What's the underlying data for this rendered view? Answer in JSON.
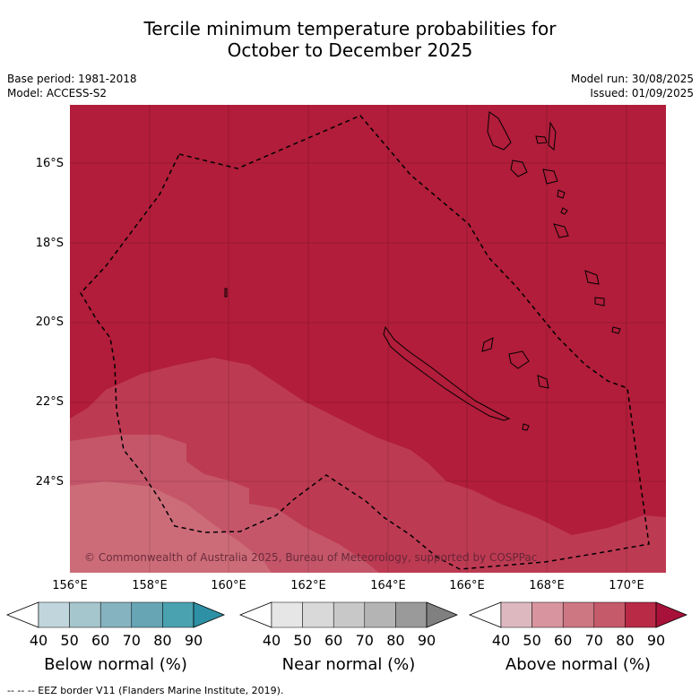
{
  "title_line1": "Tercile minimum temperature probabilities for",
  "title_line2": "October to December 2025",
  "base_period": "Base period: 1981-2018",
  "model": "Model: ACCESS-S2",
  "model_run": "Model run: 30/08/2025",
  "issued": "Issued: 01/09/2025",
  "map": {
    "lat_labels": [
      "16°S",
      "18°S",
      "20°S",
      "22°S",
      "24°S"
    ],
    "lon_labels": [
      "156°E",
      "158°E",
      "160°E",
      "162°E",
      "164°E",
      "166°E",
      "168°E",
      "170°E"
    ],
    "copyright": "© Commonwealth of Australia 2025, Bureau of Meteorology, supported by COSPPac"
  },
  "colorbars": {
    "below": {
      "title": "Below normal (%)",
      "ticks": [
        "40",
        "50",
        "60",
        "70",
        "80",
        "90"
      ],
      "colors": [
        "#ffffff",
        "#c0d5dc",
        "#a6c6cd",
        "#86b3c0",
        "#67a5b5",
        "#4aa1b0",
        "#2e90a4"
      ]
    },
    "near": {
      "title": "Near normal (%)",
      "ticks": [
        "40",
        "50",
        "60",
        "70",
        "80",
        "90"
      ],
      "colors": [
        "#ffffff",
        "#e6e6e6",
        "#d9d9d9",
        "#c8c8c8",
        "#b4b4b4",
        "#9a9a9a",
        "#808080"
      ]
    },
    "above": {
      "title": "Above normal (%)",
      "ticks": [
        "40",
        "50",
        "60",
        "70",
        "80",
        "90"
      ],
      "colors": [
        "#ffffff",
        "#deb8bf",
        "#d9959f",
        "#cd7782",
        "#c55a6a",
        "#b92a47",
        "#a8123a"
      ]
    }
  },
  "footer": "--  --  -- EEZ border V11 (Flanders Marine Institute, 2019)."
}
